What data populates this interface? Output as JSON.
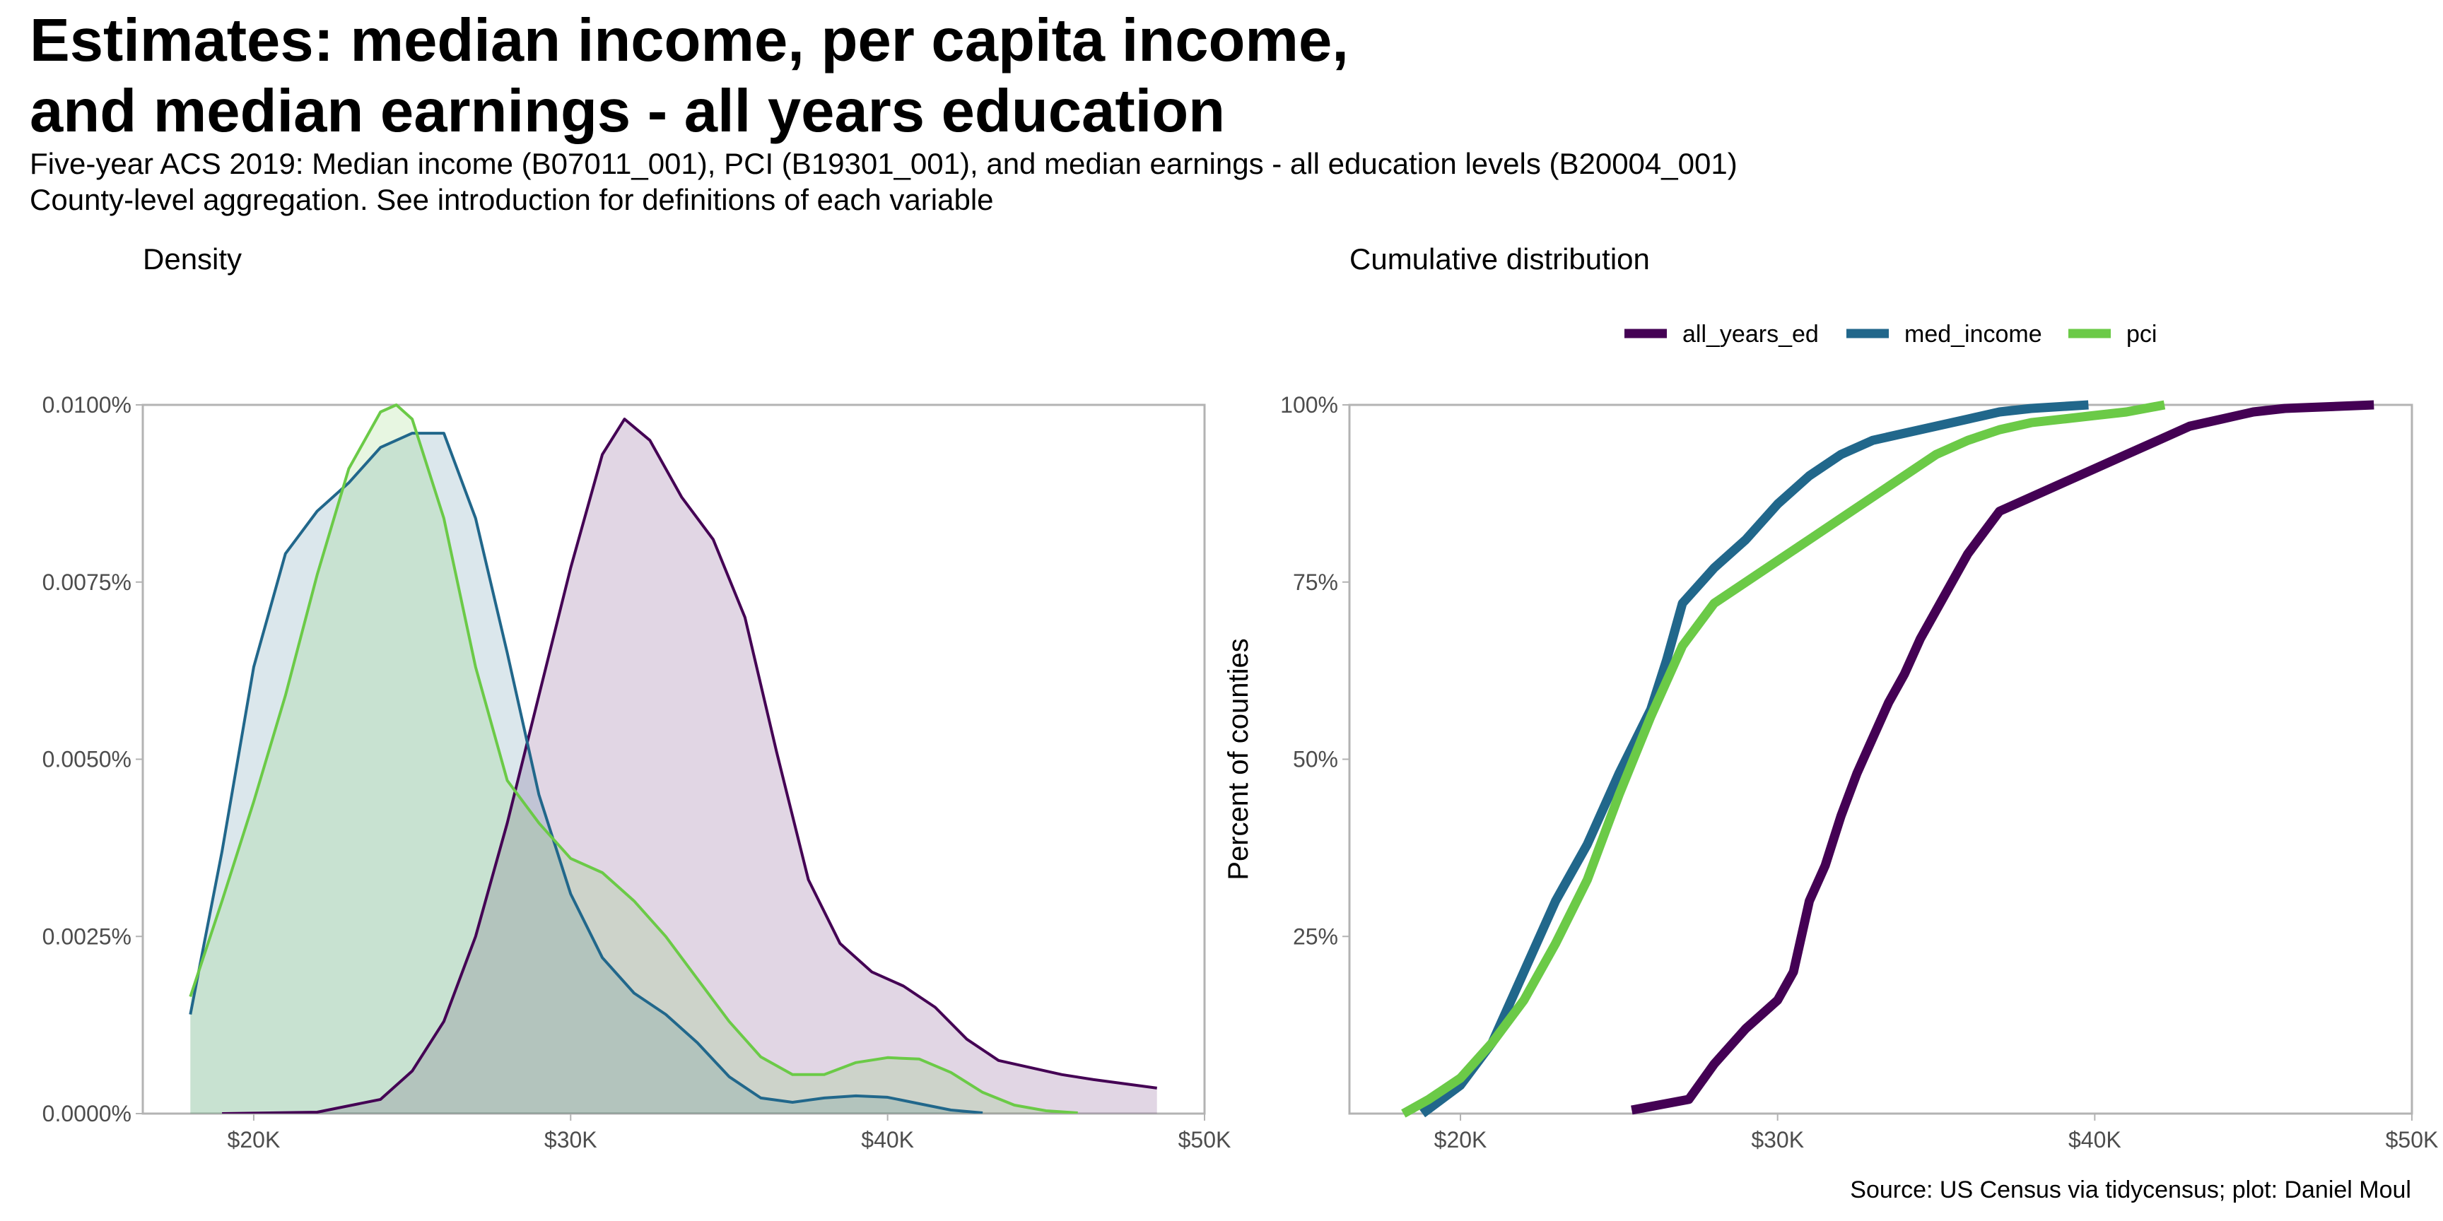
{
  "title_lines": [
    "Estimates: median income, per capita income,",
    "and median earnings - all years education"
  ],
  "subtitle_lines": [
    "Five-year ACS 2019: Median income (B07011_001), PCI (B19301_001), and median earnings - all education levels (B20004_001)",
    "County-level aggregation. See introduction for definitions of each variable"
  ],
  "caption": "Source: US Census via tidycensus; plot: Daniel Moul",
  "colors": {
    "all_years_ed": "#440154",
    "med_income": "#21678b",
    "pci": "#6bca47"
  },
  "chart_data": [
    {
      "type": "area",
      "title": "Density",
      "xlabel": "",
      "ylabel": "",
      "xlim": [
        16500,
        50000
      ],
      "ylim": [
        0,
        0.0001
      ],
      "x_ticks": [
        20000,
        30000,
        40000,
        50000
      ],
      "x_tick_labels": [
        "$20K",
        "$30K",
        "$40K",
        "$50K"
      ],
      "y_ticks": [
        0,
        2.5e-05,
        5e-05,
        7.5e-05,
        0.0001
      ],
      "y_tick_labels": [
        "0.0000%",
        "0.0025%",
        "0.0050%",
        "0.0075%",
        "0.0100%"
      ],
      "series": [
        {
          "name": "all_years_ed",
          "x": [
            19000,
            22000,
            24000,
            25000,
            26000,
            27000,
            28000,
            29000,
            30000,
            31000,
            31700,
            32500,
            33500,
            34500,
            35500,
            36500,
            37500,
            38500,
            39500,
            40500,
            41500,
            42500,
            43500,
            44500,
            45500,
            46500,
            47500,
            48500
          ],
          "y": [
            0,
            2e-07,
            2e-06,
            6e-06,
            1.3e-05,
            2.5e-05,
            4.1e-05,
            5.9e-05,
            7.7e-05,
            9.3e-05,
            9.8e-05,
            9.5e-05,
            8.7e-05,
            8.1e-05,
            7e-05,
            5.1e-05,
            3.3e-05,
            2.4e-05,
            2e-05,
            1.8e-05,
            1.5e-05,
            1.05e-05,
            7.5e-06,
            6.5e-06,
            5.5e-06,
            4.8e-06,
            4.2e-06,
            3.6e-06
          ]
        },
        {
          "name": "med_income",
          "x": [
            18000,
            19000,
            20000,
            21000,
            22000,
            23000,
            24000,
            25000,
            26000,
            27000,
            28000,
            29000,
            30000,
            31000,
            32000,
            33000,
            34000,
            35000,
            36000,
            37000,
            38000,
            39000,
            40000,
            41000,
            42000,
            43000
          ],
          "y": [
            1.4e-05,
            3.7e-05,
            6.3e-05,
            7.9e-05,
            8.5e-05,
            8.9e-05,
            9.4e-05,
            9.6e-05,
            9.6e-05,
            8.4e-05,
            6.5e-05,
            4.5e-05,
            3.1e-05,
            2.2e-05,
            1.7e-05,
            1.4e-05,
            1e-05,
            5.2e-06,
            2.2e-06,
            1.6e-06,
            2.2e-06,
            2.5e-06,
            2.3e-06,
            1.4e-06,
            5e-07,
            1e-07
          ]
        },
        {
          "name": "pci",
          "x": [
            18000,
            19000,
            20000,
            21000,
            22000,
            23000,
            24000,
            24500,
            25000,
            26000,
            27000,
            28000,
            29000,
            30000,
            31000,
            32000,
            33000,
            34000,
            35000,
            36000,
            37000,
            38000,
            39000,
            40000,
            41000,
            42000,
            43000,
            44000,
            45000,
            46000
          ],
          "y": [
            1.65e-05,
            3e-05,
            4.4e-05,
            5.9e-05,
            7.6e-05,
            9.1e-05,
            9.9e-05,
            0.0001,
            9.8e-05,
            8.4e-05,
            6.3e-05,
            4.7e-05,
            4.1e-05,
            3.6e-05,
            3.4e-05,
            3e-05,
            2.5e-05,
            1.9e-05,
            1.3e-05,
            8e-06,
            5.5e-06,
            5.5e-06,
            7.2e-06,
            7.9e-06,
            7.7e-06,
            5.8e-06,
            3e-06,
            1.2e-06,
            4e-07,
            1e-07
          ]
        }
      ]
    },
    {
      "type": "line",
      "title": "Cumulative distribution",
      "xlabel": "",
      "ylabel": "Percent of counties",
      "xlim": [
        16500,
        50000
      ],
      "ylim": [
        0,
        1
      ],
      "x_ticks": [
        20000,
        30000,
        40000,
        50000
      ],
      "x_tick_labels": [
        "$20K",
        "$30K",
        "$40K",
        "$50K"
      ],
      "y_ticks": [
        0.25,
        0.5,
        0.75,
        1
      ],
      "y_tick_labels": [
        "25%",
        "50%",
        "75%",
        "100%"
      ],
      "legend": {
        "position": "top",
        "labels": [
          "all_years_ed",
          "med_income",
          "pci"
        ]
      },
      "series": [
        {
          "name": "all_years_ed",
          "x": [
            25400,
            27200,
            28000,
            29000,
            30000,
            30500,
            31000,
            31500,
            32000,
            32500,
            33000,
            33500,
            34000,
            34500,
            35000,
            35500,
            36000,
            36500,
            37000,
            38000,
            39000,
            40000,
            41000,
            42000,
            43000,
            44000,
            45000,
            46000,
            48800
          ],
          "y": [
            0.005,
            0.02,
            0.07,
            0.12,
            0.16,
            0.2,
            0.3,
            0.35,
            0.42,
            0.48,
            0.53,
            0.58,
            0.62,
            0.67,
            0.71,
            0.75,
            0.79,
            0.82,
            0.85,
            0.87,
            0.89,
            0.91,
            0.93,
            0.95,
            0.97,
            0.98,
            0.99,
            0.995,
            1.0
          ]
        },
        {
          "name": "med_income",
          "x": [
            18800,
            20000,
            21000,
            22000,
            23000,
            24000,
            25000,
            26000,
            26500,
            27000,
            28000,
            29000,
            30000,
            31000,
            32000,
            33000,
            34000,
            35000,
            36000,
            37000,
            38000,
            39800
          ],
          "y": [
            0.0,
            0.04,
            0.1,
            0.2,
            0.3,
            0.38,
            0.48,
            0.57,
            0.64,
            0.72,
            0.77,
            0.81,
            0.86,
            0.9,
            0.93,
            0.95,
            0.96,
            0.97,
            0.98,
            0.99,
            0.995,
            1.0
          ]
        },
        {
          "name": "pci",
          "x": [
            18200,
            19000,
            20000,
            21000,
            22000,
            23000,
            24000,
            25000,
            26000,
            27000,
            28000,
            29000,
            30000,
            31000,
            32000,
            33000,
            34000,
            35000,
            36000,
            37000,
            38000,
            39000,
            40000,
            41000,
            42200
          ],
          "y": [
            0.0,
            0.02,
            0.05,
            0.1,
            0.16,
            0.24,
            0.33,
            0.45,
            0.56,
            0.66,
            0.72,
            0.75,
            0.78,
            0.81,
            0.84,
            0.87,
            0.9,
            0.93,
            0.95,
            0.965,
            0.975,
            0.98,
            0.985,
            0.99,
            1.0
          ]
        }
      ]
    }
  ]
}
